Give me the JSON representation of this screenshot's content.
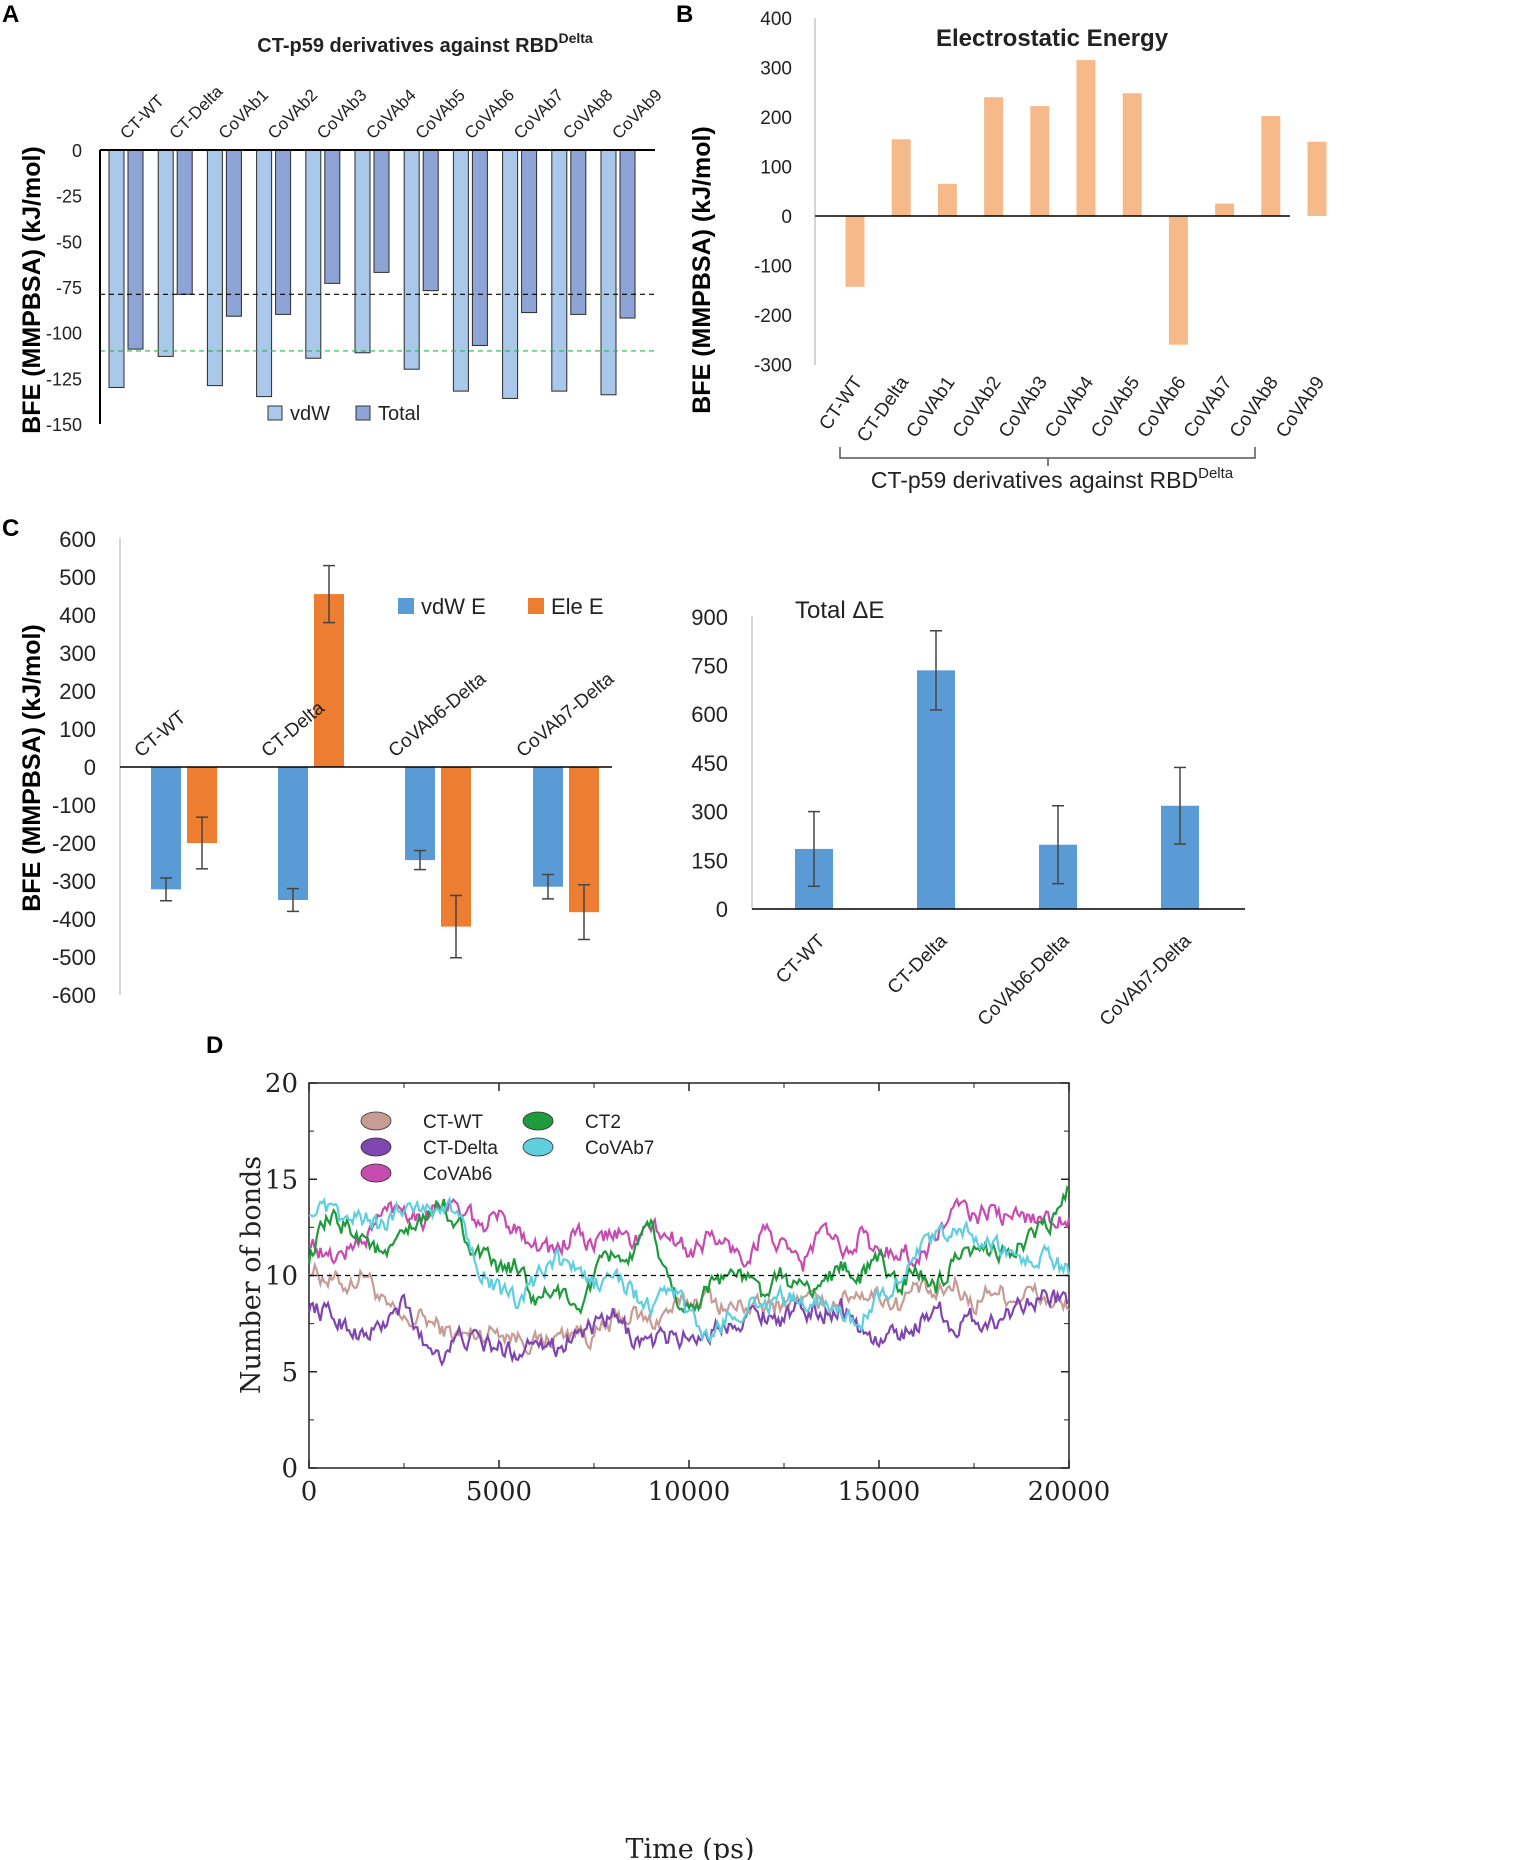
{
  "panels": {
    "a": "A",
    "b": "B",
    "c": "C",
    "d": "D"
  },
  "colors": {
    "vdw": "#a9c8ea",
    "total": "#8ea4d6",
    "ele_b": "#f6b98a",
    "vdw_c": "#5b9bd5",
    "ele_c": "#ed7d31",
    "total_c": "#5b9bd5",
    "black_line": "#000000",
    "green_line": "#2db34a",
    "ct_wt": "#c69c94",
    "ct_delta": "#8046b0",
    "covab6": "#c84bb0",
    "ct2": "#1f9a3c",
    "covab7": "#5fcfde"
  },
  "chart_data": [
    {
      "id": "A",
      "type": "bar",
      "title": "CT-p59 derivatives against RBD",
      "title_sup": "Delta",
      "ylabel": "BFE  (MMPBSA) (kJ/mol)",
      "categories": [
        "CT-WT",
        "CT-Delta",
        "CoVAb1",
        "CoVAb2",
        "CoVAb3",
        "CoVAb4",
        "CoVAb5",
        "CoVAb6",
        "CoVAb7",
        "CoVAb8",
        "CoVAb9"
      ],
      "series": [
        {
          "name": "vdW",
          "values": [
            -130,
            -113,
            -129,
            -135,
            -114,
            -111,
            -120,
            -132,
            -136,
            -132,
            -134
          ]
        },
        {
          "name": "Total",
          "values": [
            -109,
            -79,
            -91,
            -90,
            -73,
            -67,
            -77,
            -107,
            -89,
            -90,
            -92
          ]
        }
      ],
      "ylim": [
        -150,
        0
      ],
      "yticks": [
        0,
        -25,
        -50,
        -75,
        -100,
        -125,
        -150
      ],
      "ytick_labels": [
        "0",
        "-25",
        "-50",
        "-75",
        "-100",
        "-125",
        "-150"
      ],
      "reference_lines": [
        {
          "y": -79,
          "color": "black"
        },
        {
          "y": -110,
          "color": "green"
        }
      ]
    },
    {
      "id": "B",
      "type": "bar",
      "title": "Electrostatic Energy",
      "ylabel": "BFE  (MMPBSA) (kJ/mol)",
      "xlabel": "CT-p59 derivatives against RBD",
      "xlabel_sup": "Delta",
      "categories": [
        "CT-WT",
        "CT-Delta",
        "CoVAb1",
        "CoVAb2",
        "CoVAb3",
        "CoVAb4",
        "CoVAb5",
        "CoVAb6",
        "CoVAb7",
        "CoVAb8",
        "CoVAb9"
      ],
      "values": [
        -143,
        155,
        65,
        240,
        222,
        315,
        248,
        -260,
        25,
        202,
        150
      ],
      "ylim": [
        -300,
        400
      ],
      "yticks": [
        400,
        300,
        200,
        100,
        0,
        -100,
        -200,
        -300
      ],
      "ytick_labels": [
        "400",
        "300",
        "200",
        "100",
        "0",
        "-100",
        "-200",
        "-300"
      ]
    },
    {
      "id": "C-left",
      "type": "bar",
      "ylabel": "BFE  (MMPBSA) (kJ/mol)",
      "categories": [
        "CT-WT",
        "CT-Delta",
        "CoVAb6-Delta",
        "CoVAb7-Delta"
      ],
      "series": [
        {
          "name": "vdW E",
          "values": [
            -322,
            -350,
            -245,
            -315
          ],
          "errors": [
            30,
            30,
            25,
            32
          ]
        },
        {
          "name": "Ele E",
          "values": [
            -200,
            455,
            -420,
            -382
          ],
          "errors": [
            68,
            75,
            82,
            72
          ]
        }
      ],
      "ylim": [
        -600,
        600
      ],
      "yticks": [
        600,
        500,
        400,
        300,
        200,
        100,
        0,
        -100,
        -200,
        -300,
        -400,
        -500,
        -600
      ],
      "ytick_labels": [
        "600",
        "500",
        "400",
        "300",
        "200",
        "100",
        "0",
        "-100",
        "-200",
        "-300",
        "-400",
        "-500",
        "-600"
      ]
    },
    {
      "id": "C-right",
      "type": "bar",
      "title": "Total ΔE",
      "categories": [
        "CT-WT",
        "CT-Delta",
        "CoVAb6-Delta",
        "CoVAb7-Delta"
      ],
      "values": [
        185,
        735,
        198,
        318
      ],
      "errors": [
        115,
        122,
        120,
        118
      ],
      "ylim": [
        0,
        900
      ],
      "yticks": [
        900,
        750,
        600,
        450,
        300,
        150,
        0
      ],
      "ytick_labels": [
        "900",
        "750",
        "600",
        "450",
        "300",
        "150",
        "0"
      ]
    },
    {
      "id": "D",
      "type": "line",
      "xlabel": "Time (ps)",
      "ylabel": "Number of bonds",
      "xlim": [
        0,
        20000
      ],
      "ylim": [
        0,
        20
      ],
      "xticks": [
        0,
        5000,
        10000,
        15000,
        20000
      ],
      "xtick_labels": [
        "0",
        "5000",
        "10000",
        "15000",
        "20000"
      ],
      "yticks": [
        0,
        5,
        10,
        15,
        20
      ],
      "ytick_labels": [
        "0",
        "5",
        "10",
        "15",
        "20"
      ],
      "reference_line": 10,
      "x": [
        0,
        500,
        1000,
        1500,
        2000,
        2500,
        3000,
        3500,
        4000,
        4500,
        5000,
        5500,
        6000,
        6500,
        7000,
        7500,
        8000,
        8500,
        9000,
        9500,
        10000,
        10500,
        11000,
        11500,
        12000,
        12500,
        13000,
        13500,
        14000,
        14500,
        15000,
        15500,
        16000,
        16500,
        17000,
        17500,
        18000,
        18500,
        19000,
        19500,
        20000
      ],
      "series": [
        {
          "name": "CT-WT",
          "values": [
            10.5,
            9.8,
            9.5,
            10.2,
            8.3,
            7.5,
            7.8,
            7.2,
            6.8,
            7.0,
            7.2,
            6.8,
            6.5,
            6.8,
            7.2,
            6.8,
            7.5,
            8.0,
            7.5,
            8.2,
            8.6,
            9.0,
            8.2,
            8.5,
            8.2,
            8.6,
            8.8,
            8.4,
            8.8,
            9.2,
            9.0,
            8.5,
            9.4,
            8.8,
            9.5,
            8.5,
            9.4,
            8.8,
            9.2,
            8.6,
            8.2
          ]
        },
        {
          "name": "CT-Delta",
          "values": [
            8.5,
            8.0,
            7.4,
            6.8,
            7.5,
            8.5,
            6.5,
            6.0,
            6.8,
            6.5,
            6.2,
            6.0,
            7.0,
            6.2,
            7.0,
            7.2,
            7.8,
            6.8,
            6.5,
            6.8,
            6.8,
            7.0,
            7.5,
            8.0,
            8.0,
            7.8,
            8.2,
            8.0,
            8.5,
            7.2,
            6.5,
            7.0,
            7.4,
            8.5,
            7.2,
            7.8,
            7.5,
            8.2,
            9.0,
            8.8,
            8.6
          ]
        },
        {
          "name": "CoVAb6",
          "values": [
            12.0,
            10.8,
            11.3,
            12.0,
            13.4,
            13.6,
            13.0,
            14.0,
            13.2,
            12.6,
            13.0,
            12.5,
            11.6,
            11.2,
            12.2,
            11.4,
            12.3,
            11.8,
            12.4,
            12.0,
            11.2,
            12.0,
            11.5,
            10.8,
            12.5,
            11.2,
            10.6,
            12.5,
            11.2,
            12.2,
            11.0,
            11.4,
            10.8,
            12.0,
            13.6,
            13.0,
            13.4,
            12.8,
            13.2,
            12.8,
            13.0
          ]
        },
        {
          "name": "CT2",
          "values": [
            11.0,
            12.8,
            12.6,
            12.0,
            10.8,
            12.0,
            12.8,
            13.8,
            12.4,
            11.0,
            10.2,
            10.5,
            8.5,
            9.4,
            8.0,
            9.8,
            11.2,
            10.8,
            12.5,
            9.5,
            8.0,
            9.5,
            10.2,
            9.8,
            9.0,
            10.0,
            9.2,
            9.5,
            10.5,
            10.0,
            10.8,
            9.6,
            10.2,
            9.4,
            10.5,
            11.0,
            11.5,
            11.2,
            12.0,
            12.6,
            14.4
          ]
        },
        {
          "name": "CoVAb7",
          "values": [
            13.5,
            13.2,
            12.8,
            13.0,
            12.5,
            13.8,
            13.5,
            13.6,
            13.0,
            10.5,
            9.2,
            8.5,
            9.8,
            10.8,
            10.2,
            9.5,
            10.0,
            9.2,
            8.2,
            9.5,
            8.0,
            6.5,
            7.8,
            8.4,
            8.6,
            8.8,
            8.5,
            9.0,
            8.0,
            7.5,
            9.0,
            9.8,
            11.2,
            11.8,
            12.6,
            12.0,
            11.4,
            11.0,
            10.8,
            11.0,
            10.0
          ]
        }
      ]
    }
  ]
}
